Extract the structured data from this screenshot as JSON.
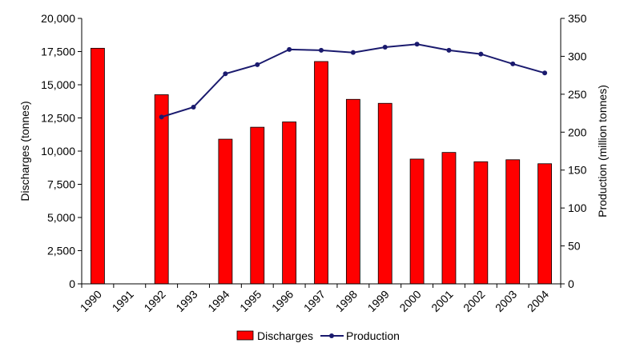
{
  "chart_data": {
    "type": "bar",
    "categories": [
      "1990",
      "1991",
      "1992",
      "1993",
      "1994",
      "1995",
      "1996",
      "1997",
      "1998",
      "1999",
      "2000",
      "2001",
      "2002",
      "2003",
      "2004"
    ],
    "series": [
      {
        "name": "Discharges",
        "type": "bar",
        "axis": "left",
        "color": "#ff0000",
        "values": [
          17750,
          null,
          14250,
          null,
          10900,
          11800,
          12200,
          16750,
          13900,
          13600,
          9400,
          9900,
          9200,
          9350,
          9050
        ]
      },
      {
        "name": "Production",
        "type": "line",
        "axis": "right",
        "color": "#1a1a6e",
        "values": [
          null,
          null,
          220,
          233,
          277,
          289,
          309,
          308,
          305,
          312,
          316,
          308,
          303,
          290,
          278
        ]
      }
    ],
    "ylabel": "Discharges (tonnes)",
    "ylim": [
      0,
      20000
    ],
    "yticks": [
      "0",
      "2,500",
      "5,000",
      "7,500",
      "10,000",
      "12,500",
      "15,000",
      "17,500",
      "20,000"
    ],
    "y2label": "Production (million tonnes)",
    "y2lim": [
      0,
      350
    ],
    "y2ticks": [
      "0",
      "50",
      "100",
      "150",
      "200",
      "250",
      "300",
      "350"
    ],
    "grid": false,
    "legend": "bottom-center"
  }
}
